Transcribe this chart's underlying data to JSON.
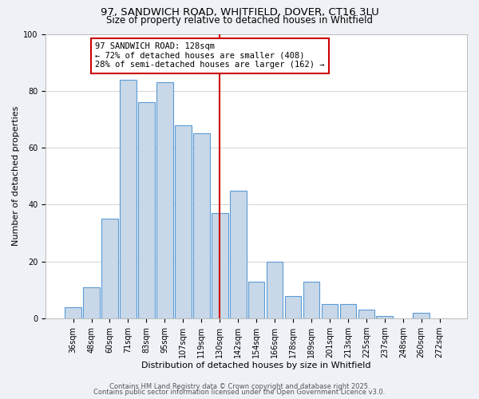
{
  "title": "97, SANDWICH ROAD, WHITFIELD, DOVER, CT16 3LU",
  "subtitle": "Size of property relative to detached houses in Whitfield",
  "xlabel": "Distribution of detached houses by size in Whitfield",
  "ylabel": "Number of detached properties",
  "bar_labels": [
    "36sqm",
    "48sqm",
    "60sqm",
    "71sqm",
    "83sqm",
    "95sqm",
    "107sqm",
    "119sqm",
    "130sqm",
    "142sqm",
    "154sqm",
    "166sqm",
    "178sqm",
    "189sqm",
    "201sqm",
    "213sqm",
    "225sqm",
    "237sqm",
    "248sqm",
    "260sqm",
    "272sqm"
  ],
  "bar_values": [
    4,
    11,
    35,
    84,
    76,
    83,
    68,
    65,
    37,
    45,
    13,
    20,
    8,
    13,
    5,
    5,
    3,
    1,
    0,
    2,
    0
  ],
  "bar_color": "#c8d8e8",
  "bar_edge_color": "#5b9bd5",
  "reference_line_x": 8.0,
  "ylim": [
    0,
    100
  ],
  "yticks": [
    0,
    20,
    40,
    60,
    80,
    100
  ],
  "annotation_title": "97 SANDWICH ROAD: 128sqm",
  "annotation_line1": "← 72% of detached houses are smaller (408)",
  "annotation_line2": "28% of semi-detached houses are larger (162) →",
  "footer1": "Contains HM Land Registry data © Crown copyright and database right 2025.",
  "footer2": "Contains public sector information licensed under the Open Government Licence v3.0.",
  "bg_color": "#eef2f7",
  "plot_bg_color": "#ffffff",
  "ref_line_color": "#cc0000",
  "annotation_box_edge": "#cc0000",
  "title_fontsize": 9.5,
  "subtitle_fontsize": 8.5,
  "axis_label_fontsize": 8,
  "tick_fontsize": 7,
  "annotation_fontsize": 7.5,
  "footer_fontsize": 6
}
